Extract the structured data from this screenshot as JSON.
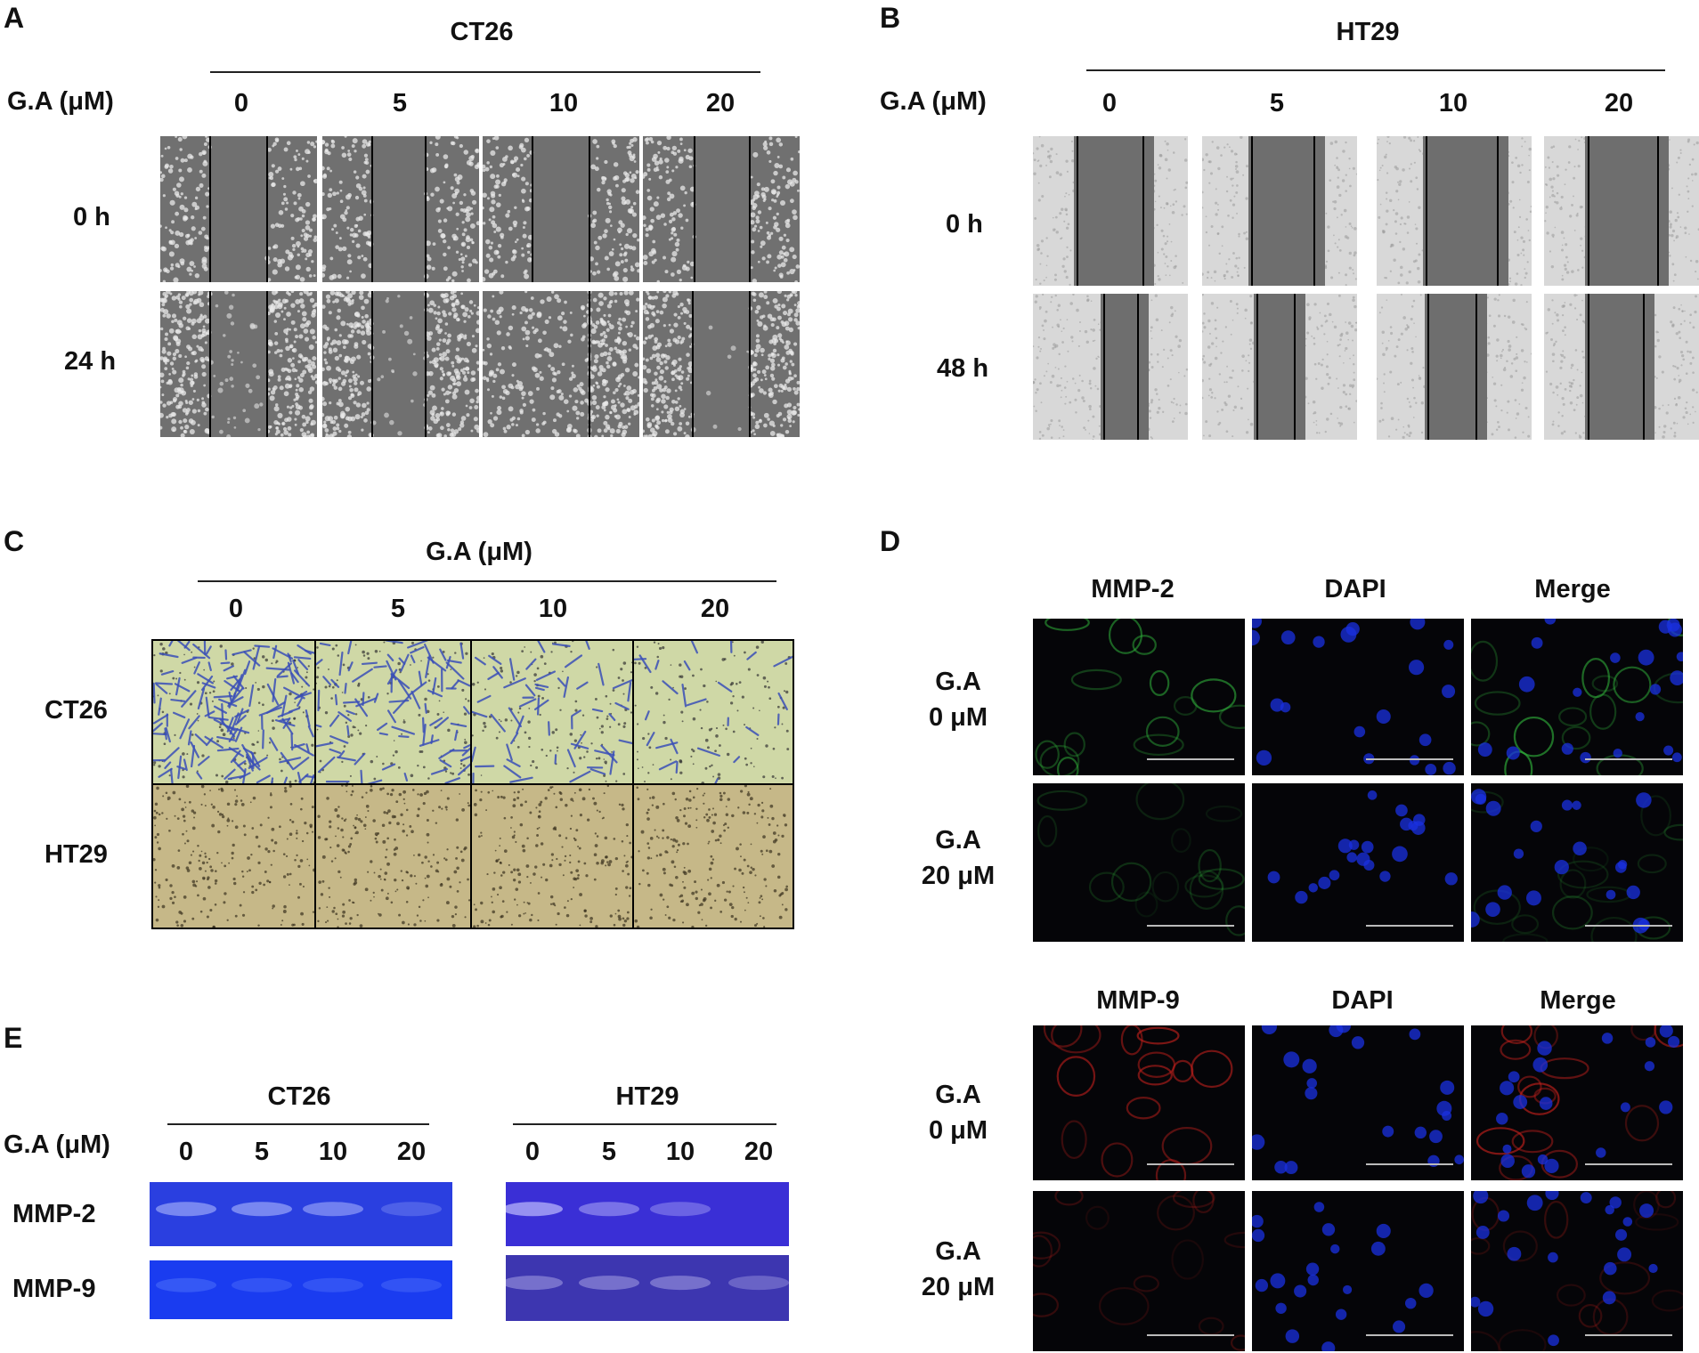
{
  "panels": {
    "A": {
      "letter": "A",
      "cell_line": "CT26",
      "axis_label": "G.A (μM)",
      "doses": [
        "0",
        "5",
        "10",
        "20"
      ],
      "timepoints": [
        "0 h",
        "24 h"
      ]
    },
    "B": {
      "letter": "B",
      "cell_line": "HT29",
      "axis_label": "G.A (μM)",
      "doses": [
        "0",
        "5",
        "10",
        "20"
      ],
      "timepoints": [
        "0 h",
        "48 h"
      ]
    },
    "C": {
      "letter": "C",
      "axis_label": "G.A (μM)",
      "doses": [
        "0",
        "5",
        "10",
        "20"
      ],
      "rows": [
        "CT26",
        "HT29"
      ]
    },
    "D": {
      "letter": "D",
      "group1": {
        "headers": [
          "MMP-2",
          "DAPI",
          "Merge"
        ]
      },
      "group2": {
        "headers": [
          "MMP-9",
          "DAPI",
          "Merge"
        ]
      },
      "row_labels": [
        {
          "line1": "G.A",
          "line2": "0 μM"
        },
        {
          "line1": "G.A",
          "line2": "20 μM"
        }
      ]
    },
    "E": {
      "letter": "E",
      "axis_label": "G.A (μM)",
      "groups": [
        {
          "cell_line": "CT26",
          "doses": [
            "0",
            "5",
            "10",
            "20"
          ]
        },
        {
          "cell_line": "HT29",
          "doses": [
            "0",
            "5",
            "10",
            "20"
          ]
        }
      ],
      "bands": [
        "MMP-2",
        "MMP-9"
      ]
    }
  },
  "colors": {
    "wound_tile": "#707070",
    "ht29_tile_light": "#d8d8d8",
    "crystal_violet_bg": "#cfd8a6",
    "ht29_membrane_bg": "#c6b888",
    "gel_ct26": "#2a3fe0",
    "gel_ht29": "#3a2fd6",
    "green_signal": "#2fae3a",
    "red_signal": "#c0201c",
    "dapi_blue": "#1a30e0"
  }
}
